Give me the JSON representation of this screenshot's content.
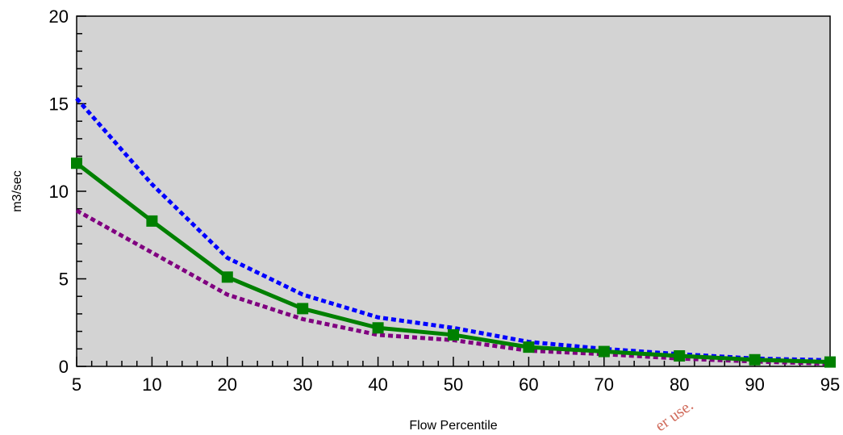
{
  "chart_data": {
    "type": "line",
    "title": "",
    "xlabel": "Flow Percentile",
    "ylabel": "m3/sec",
    "x": [
      5,
      10,
      20,
      30,
      40,
      50,
      60,
      70,
      80,
      90,
      95
    ],
    "x_tick_labels": [
      "5",
      "10",
      "20",
      "30",
      "40",
      "50",
      "60",
      "70",
      "80",
      "90",
      "95"
    ],
    "y_tick_labels": [
      "0",
      "5",
      "10",
      "15",
      "20"
    ],
    "ylim": [
      0,
      20
    ],
    "grid": false,
    "background": "#d3d3d3",
    "series": [
      {
        "values": [
          15.3,
          10.4,
          6.2,
          4.1,
          2.8,
          2.2,
          1.4,
          1.0,
          0.7,
          0.45,
          0.35
        ],
        "color": "#0000ff",
        "style": "dotted"
      },
      {
        "values": [
          11.6,
          8.3,
          5.1,
          3.3,
          2.2,
          1.8,
          1.1,
          0.85,
          0.6,
          0.38,
          0.25
        ],
        "color": "#008000",
        "style": "solid",
        "marker": "square"
      },
      {
        "values": [
          8.9,
          6.5,
          4.1,
          2.7,
          1.8,
          1.5,
          0.9,
          0.7,
          0.45,
          0.28,
          0.15
        ],
        "color": "#800080",
        "style": "dotted"
      }
    ]
  },
  "watermark": "er use."
}
